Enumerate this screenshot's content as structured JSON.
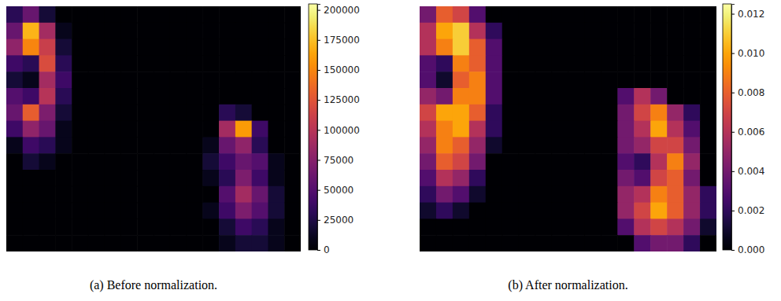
{
  "chart_data": [
    {
      "type": "heatmap",
      "title": "(a) Before normalization.",
      "colorbar": {
        "range": [
          0,
          205000
        ],
        "ticks": [
          0,
          25000,
          50000,
          75000,
          100000,
          125000,
          150000,
          175000,
          200000
        ]
      },
      "cells": [
        [
          30000,
          60000,
          20000,
          0,
          0,
          0,
          0,
          0,
          0,
          0,
          0,
          0,
          0,
          0,
          0,
          0,
          0,
          0
        ],
        [
          60000,
          170000,
          90000,
          10000,
          0,
          0,
          0,
          0,
          0,
          0,
          0,
          0,
          0,
          0,
          0,
          0,
          0,
          0
        ],
        [
          80000,
          150000,
          110000,
          20000,
          0,
          0,
          0,
          0,
          0,
          0,
          0,
          0,
          0,
          0,
          0,
          0,
          0,
          0
        ],
        [
          40000,
          30000,
          120000,
          30000,
          0,
          0,
          0,
          0,
          0,
          0,
          0,
          0,
          0,
          0,
          0,
          0,
          0,
          0
        ],
        [
          20000,
          10000,
          90000,
          40000,
          0,
          0,
          0,
          0,
          0,
          0,
          0,
          0,
          0,
          0,
          0,
          0,
          0,
          0
        ],
        [
          50000,
          40000,
          100000,
          30000,
          0,
          0,
          0,
          0,
          0,
          0,
          0,
          0,
          0,
          0,
          0,
          0,
          0,
          0
        ],
        [
          60000,
          130000,
          70000,
          20000,
          0,
          0,
          0,
          0,
          0,
          0,
          0,
          0,
          0,
          30000,
          20000,
          0,
          0,
          0
        ],
        [
          40000,
          80000,
          60000,
          10000,
          0,
          0,
          0,
          0,
          0,
          0,
          0,
          0,
          0,
          90000,
          160000,
          40000,
          0,
          0
        ],
        [
          10000,
          40000,
          30000,
          10000,
          0,
          0,
          0,
          0,
          0,
          0,
          0,
          0,
          10000,
          60000,
          80000,
          30000,
          0,
          0
        ],
        [
          0,
          20000,
          10000,
          0,
          0,
          0,
          0,
          0,
          0,
          0,
          0,
          0,
          20000,
          40000,
          60000,
          50000,
          10000,
          0
        ],
        [
          0,
          0,
          0,
          0,
          0,
          0,
          0,
          0,
          0,
          0,
          0,
          0,
          10000,
          30000,
          70000,
          40000,
          10000,
          0
        ],
        [
          0,
          0,
          0,
          0,
          0,
          0,
          0,
          0,
          0,
          0,
          0,
          0,
          0,
          50000,
          90000,
          60000,
          20000,
          0
        ],
        [
          0,
          0,
          0,
          0,
          0,
          0,
          0,
          0,
          0,
          0,
          0,
          0,
          10000,
          40000,
          70000,
          50000,
          20000,
          0
        ],
        [
          0,
          0,
          0,
          0,
          0,
          0,
          0,
          0,
          0,
          0,
          0,
          0,
          0,
          20000,
          40000,
          30000,
          10000,
          0
        ],
        [
          0,
          0,
          0,
          0,
          0,
          0,
          0,
          0,
          0,
          0,
          0,
          0,
          0,
          10000,
          20000,
          20000,
          10000,
          0
        ]
      ]
    },
    {
      "type": "heatmap",
      "title": "(b) After normalization.",
      "colorbar": {
        "range": [
          0,
          0.0125
        ],
        "ticks": [
          {
            "value": 0,
            "label": "0.000"
          },
          {
            "value": 0.002,
            "label": "0.002"
          },
          {
            "value": 0.004,
            "label": "0.004"
          },
          {
            "value": 0.006,
            "label": "0.006"
          },
          {
            "value": 0.008,
            "label": "0.008"
          },
          {
            "value": 0.01,
            "label": "0.010"
          },
          {
            "value": 0.012,
            "label": "0.012"
          }
        ]
      },
      "cells": [
        [
          0.004,
          0.008,
          0.007,
          0.003,
          0,
          0,
          0,
          0,
          0,
          0,
          0,
          0,
          0,
          0,
          0,
          0,
          0,
          0
        ],
        [
          0.006,
          0.01,
          0.011,
          0.006,
          0.002,
          0,
          0,
          0,
          0,
          0,
          0,
          0,
          0,
          0,
          0,
          0,
          0,
          0
        ],
        [
          0.006,
          0.009,
          0.011,
          0.008,
          0.003,
          0,
          0,
          0,
          0,
          0,
          0,
          0,
          0,
          0,
          0,
          0,
          0,
          0
        ],
        [
          0.003,
          0.002,
          0.009,
          0.008,
          0.003,
          0,
          0,
          0,
          0,
          0,
          0,
          0,
          0,
          0,
          0,
          0,
          0,
          0
        ],
        [
          0.003,
          0.001,
          0.008,
          0.009,
          0.003,
          0,
          0,
          0,
          0,
          0,
          0,
          0,
          0,
          0,
          0,
          0,
          0,
          0
        ],
        [
          0.005,
          0.004,
          0.009,
          0.009,
          0.003,
          0,
          0,
          0,
          0,
          0,
          0,
          0,
          0.003,
          0.006,
          0.004,
          0,
          0,
          0
        ],
        [
          0.007,
          0.01,
          0.01,
          0.008,
          0.002,
          0,
          0,
          0,
          0,
          0,
          0,
          0,
          0.004,
          0.007,
          0.009,
          0.005,
          0.002,
          0
        ],
        [
          0.006,
          0.009,
          0.01,
          0.006,
          0.002,
          0,
          0,
          0,
          0,
          0,
          0,
          0,
          0.004,
          0.006,
          0.01,
          0.006,
          0.003,
          0
        ],
        [
          0.005,
          0.009,
          0.008,
          0.005,
          0.001,
          0,
          0,
          0,
          0,
          0,
          0,
          0,
          0.004,
          0.005,
          0.007,
          0.007,
          0.004,
          0
        ],
        [
          0.004,
          0.008,
          0.007,
          0.004,
          0,
          0,
          0,
          0,
          0,
          0,
          0,
          0,
          0.003,
          0.002,
          0.006,
          0.009,
          0.005,
          0
        ],
        [
          0.003,
          0.006,
          0.005,
          0.002,
          0,
          0,
          0,
          0,
          0,
          0,
          0,
          0,
          0.004,
          0.003,
          0.007,
          0.008,
          0.004,
          0
        ],
        [
          0.002,
          0.004,
          0.003,
          0.001,
          0,
          0,
          0,
          0,
          0,
          0,
          0,
          0,
          0.005,
          0.006,
          0.009,
          0.008,
          0.005,
          0.002
        ],
        [
          0.001,
          0.002,
          0.001,
          0,
          0,
          0,
          0,
          0,
          0,
          0,
          0,
          0,
          0.005,
          0.007,
          0.01,
          0.008,
          0.005,
          0.002
        ],
        [
          0,
          0,
          0,
          0,
          0,
          0,
          0,
          0,
          0,
          0,
          0,
          0,
          0.003,
          0.006,
          0.007,
          0.006,
          0.004,
          0.001
        ],
        [
          0,
          0,
          0,
          0,
          0,
          0,
          0,
          0,
          0,
          0,
          0,
          0,
          0,
          0.003,
          0.004,
          0.004,
          0.002,
          0
        ]
      ]
    }
  ]
}
